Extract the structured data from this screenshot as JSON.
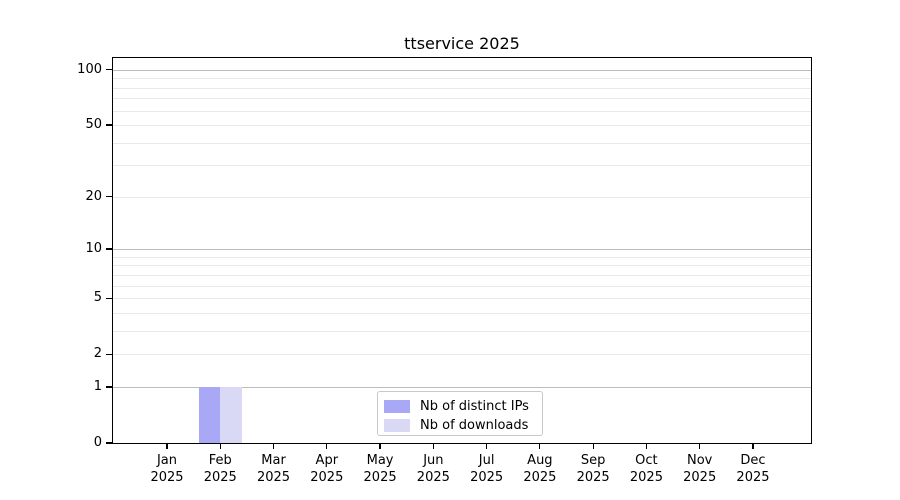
{
  "chart_data": {
    "type": "bar",
    "title": "ttservice 2025",
    "x_axis": {
      "unit": "month",
      "tick_labels": [
        [
          "Jan",
          "2025"
        ],
        [
          "Feb",
          "2025"
        ],
        [
          "Mar",
          "2025"
        ],
        [
          "Apr",
          "2025"
        ],
        [
          "May",
          "2025"
        ],
        [
          "Jun",
          "2025"
        ],
        [
          "Jul",
          "2025"
        ],
        [
          "Aug",
          "2025"
        ],
        [
          "Sep",
          "2025"
        ],
        [
          "Oct",
          "2025"
        ],
        [
          "Nov",
          "2025"
        ],
        [
          "Dec",
          "2025"
        ]
      ]
    },
    "y_axis": {
      "scale": "log1p",
      "tick_values": [
        0,
        1,
        2,
        5,
        10,
        20,
        50,
        100
      ],
      "tick_labels": [
        "0",
        "1",
        "2",
        "5",
        "10",
        "20",
        "50",
        "100"
      ],
      "range": [
        0,
        117
      ],
      "grid": "horizontal"
    },
    "series": [
      {
        "name": "Nb of distinct IPs",
        "color": "#a8a8f6",
        "values": [
          0,
          1,
          0,
          0,
          0,
          0,
          0,
          0,
          0,
          0,
          0,
          0
        ]
      },
      {
        "name": "Nb of downloads",
        "color": "#d9d9f5",
        "values": [
          0,
          1,
          0,
          0,
          0,
          0,
          0,
          0,
          0,
          0,
          0,
          0
        ]
      }
    ],
    "legend": {
      "position": "lower center",
      "entries": [
        "Nb of distinct IPs",
        "Nb of downloads"
      ]
    },
    "colors": {
      "major_grid": "#bdbdbd",
      "minor_grid": "#e9e9e9",
      "spine": "#000000",
      "background": "#ffffff"
    }
  }
}
